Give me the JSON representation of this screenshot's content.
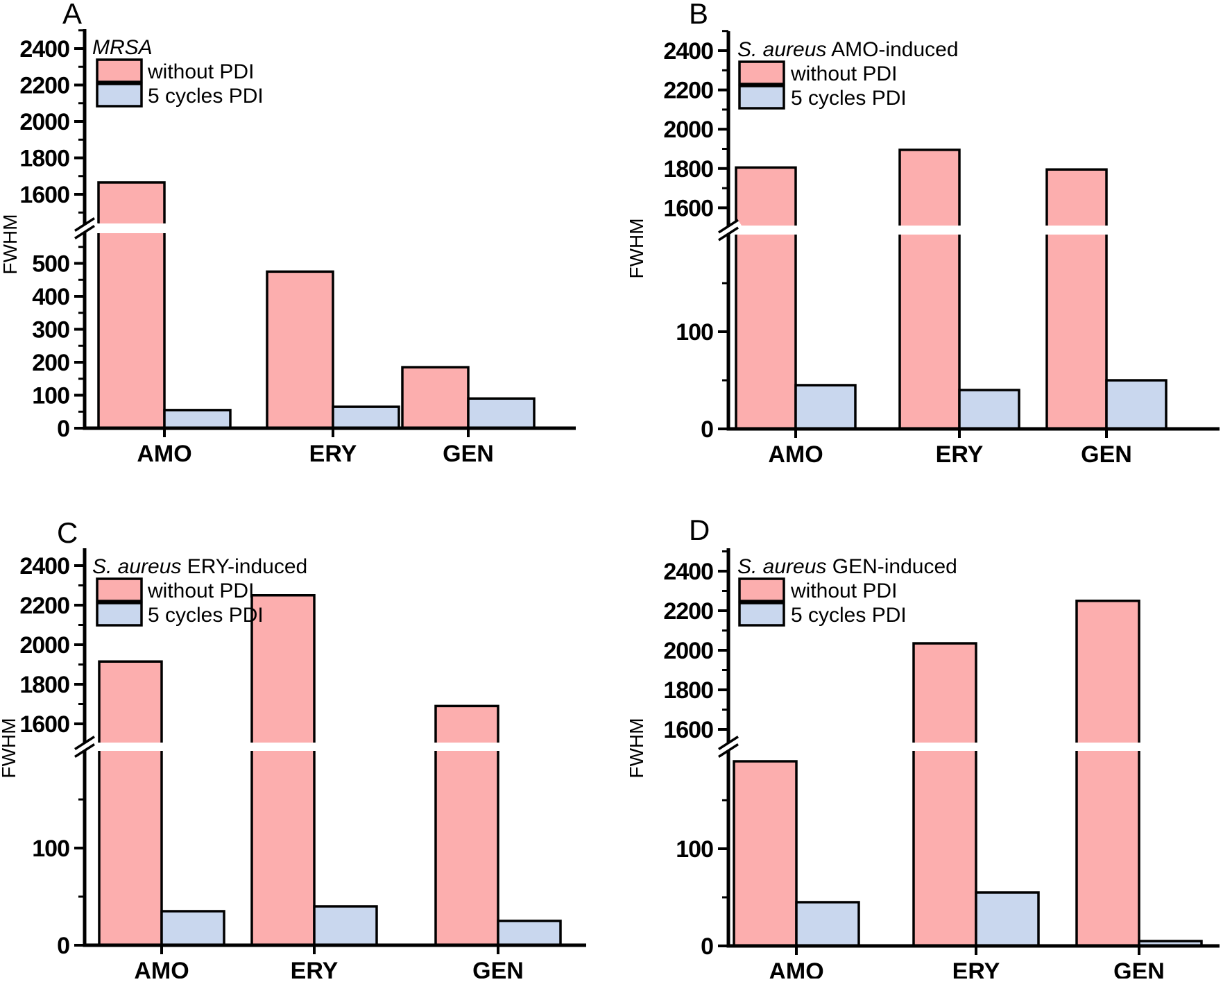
{
  "figure": {
    "ylabel": "FWHM",
    "categories": [
      "AMO",
      "ERY",
      "GEN"
    ],
    "legend": [
      "without PDI",
      "5 cycles PDI"
    ],
    "colors": {
      "without_pdi_fill": "#FCAEAE",
      "five_cycles_pdi_fill": "#C9D7EE",
      "outline": "#000000",
      "background": "#FFFFFF"
    }
  },
  "chart_data": [
    {
      "panel": "A",
      "type": "bar",
      "title_italic": "MRSA",
      "title_rest": "",
      "ylabel": "FWHM",
      "categories": [
        "AMO",
        "ERY",
        "GEN"
      ],
      "series": [
        {
          "name": "without PDI",
          "values": [
            1665,
            475,
            185
          ]
        },
        {
          "name": "5 cycles PDI",
          "values": [
            55,
            65,
            90
          ]
        }
      ],
      "axis": {
        "lower_ticks": [
          0,
          100,
          200,
          300,
          400,
          500
        ],
        "upper_ticks": [
          1600,
          1800,
          2000,
          2200,
          2400
        ],
        "break_range": [
          590,
          1450
        ],
        "grid": false
      },
      "legend": [
        "without PDI",
        "5 cycles PDI"
      ]
    },
    {
      "panel": "B",
      "type": "bar",
      "title_italic": "S. aureus",
      "title_rest": " AMO-induced",
      "ylabel": "FWHM",
      "categories": [
        "AMO",
        "ERY",
        "GEN"
      ],
      "series": [
        {
          "name": "without PDI",
          "values": [
            1805,
            1895,
            1795
          ]
        },
        {
          "name": "5 cycles PDI",
          "values": [
            45,
            40,
            50
          ]
        }
      ],
      "axis": {
        "lower_ticks": [
          0,
          100
        ],
        "upper_ticks": [
          1600,
          1800,
          2000,
          2200,
          2400
        ],
        "break_range": [
          200,
          1500
        ],
        "grid": false
      },
      "legend": [
        "without PDI",
        "5 cycles PDI"
      ]
    },
    {
      "panel": "C",
      "type": "bar",
      "title_italic": "S. aureus",
      "title_rest": " ERY-induced",
      "ylabel": "FWHM",
      "categories": [
        "AMO",
        "ERY",
        "GEN"
      ],
      "series": [
        {
          "name": "without PDI",
          "values": [
            1915,
            2250,
            1690
          ]
        },
        {
          "name": "5 cycles PDI",
          "values": [
            35,
            40,
            25
          ]
        }
      ],
      "axis": {
        "lower_ticks": [
          0,
          100
        ],
        "upper_ticks": [
          1600,
          1800,
          2000,
          2200,
          2400
        ],
        "break_range": [
          200,
          1500
        ],
        "grid": false
      },
      "legend": [
        "without PDI",
        "5 cycles PDI"
      ]
    },
    {
      "panel": "D",
      "type": "bar",
      "title_italic": "S. aureus",
      "title_rest": " GEN-induced",
      "ylabel": "FWHM",
      "categories": [
        "AMO",
        "ERY",
        "GEN"
      ],
      "series": [
        {
          "name": "without PDI",
          "values": [
            190,
            2035,
            2250
          ]
        },
        {
          "name": "5 cycles PDI",
          "values": [
            45,
            55,
            5
          ]
        }
      ],
      "axis": {
        "lower_ticks": [
          0,
          100
        ],
        "upper_ticks": [
          1600,
          1800,
          2000,
          2200,
          2400
        ],
        "break_range": [
          200,
          1500
        ],
        "grid": false
      },
      "legend": [
        "without PDI",
        "5 cycles PDI"
      ]
    }
  ]
}
